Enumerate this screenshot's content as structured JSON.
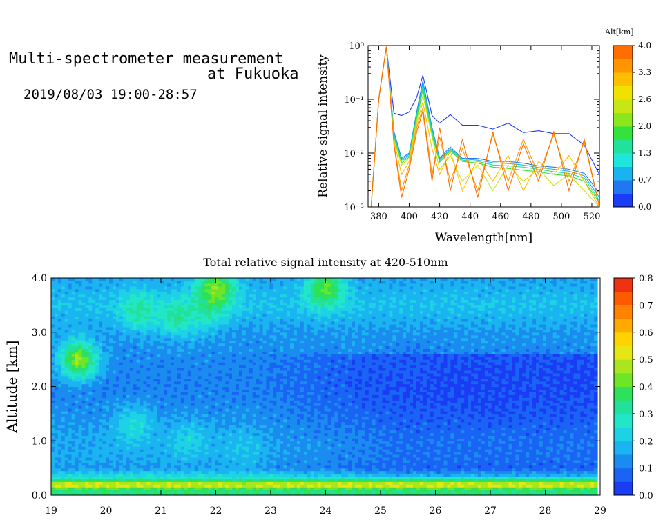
{
  "header": {
    "title_line1": "Multi-spectrometer measurement",
    "title_line2": "at Fukuoka",
    "datetime": "2019/08/03 19:00-28:57"
  },
  "chart_data": [
    {
      "type": "line",
      "title": "",
      "xlabel": "Wavelength[nm]",
      "ylabel": "Relative signal intensity",
      "yscale": "log",
      "xlim": [
        373,
        525
      ],
      "ylim": [
        0.001,
        1
      ],
      "x_ticks": [
        380,
        400,
        420,
        440,
        460,
        480,
        500,
        520
      ],
      "x_tick_labels": [
        "380",
        "400",
        "420",
        "440",
        "460",
        "480",
        "500",
        "520"
      ],
      "y_ticks": [
        0.001,
        0.01,
        0.1,
        1
      ],
      "y_tick_labels": [
        "10⁻³",
        "10⁻²",
        "10⁻¹",
        "10⁰"
      ],
      "colorbar": {
        "label": "Alt[km]",
        "tick_labels": [
          "0.0",
          "0.7",
          "1.3",
          "2.0",
          "2.6",
          "3.3",
          "4.0"
        ],
        "colors": [
          "#1a3cf5",
          "#1f78f0",
          "#19b4f0",
          "#1fe6dc",
          "#22e19a",
          "#35e13c",
          "#8ce61e",
          "#c8e614",
          "#f0e100",
          "#ffbe00",
          "#ff9600",
          "#ff6e00"
        ]
      },
      "x": [
        375,
        380,
        385,
        390,
        395,
        400,
        405,
        409,
        415,
        420,
        427,
        435,
        445,
        455,
        465,
        475,
        485,
        495,
        505,
        515,
        525
      ],
      "series": [
        {
          "color": "#1a3cf5",
          "values": [
            0.001,
            0.1,
            0.95,
            0.055,
            0.05,
            0.058,
            0.11,
            0.28,
            0.05,
            0.036,
            0.052,
            0.033,
            0.033,
            0.028,
            0.036,
            0.024,
            0.026,
            0.023,
            0.023,
            0.014,
            0.004
          ]
        },
        {
          "color": "#1f78f0",
          "values": [
            0.001,
            0.1,
            0.95,
            0.025,
            0.008,
            0.01,
            0.06,
            0.22,
            0.03,
            0.008,
            0.013,
            0.008,
            0.008,
            0.007,
            0.007,
            0.0065,
            0.0058,
            0.0055,
            0.005,
            0.0042,
            0.0018
          ]
        },
        {
          "color": "#19b4f0",
          "values": [
            0.001,
            0.1,
            0.95,
            0.023,
            0.0075,
            0.0095,
            0.055,
            0.2,
            0.028,
            0.0075,
            0.012,
            0.0078,
            0.0074,
            0.0066,
            0.0064,
            0.006,
            0.0054,
            0.005,
            0.0046,
            0.0038,
            0.0015
          ]
        },
        {
          "color": "#22e19a",
          "values": [
            0.001,
            0.1,
            0.95,
            0.021,
            0.007,
            0.009,
            0.05,
            0.17,
            0.025,
            0.0072,
            0.0115,
            0.0074,
            0.007,
            0.006,
            0.0058,
            0.0055,
            0.005,
            0.0045,
            0.0042,
            0.0034,
            0.0013
          ]
        },
        {
          "color": "#35e13c",
          "values": [
            0.001,
            0.1,
            0.95,
            0.02,
            0.0065,
            0.0085,
            0.045,
            0.15,
            0.022,
            0.0068,
            0.011,
            0.007,
            0.0065,
            0.0055,
            0.0052,
            0.0048,
            0.0045,
            0.004,
            0.0038,
            0.003,
            0.0012
          ]
        },
        {
          "color": "#c8e614",
          "values": [
            0.001,
            0.1,
            0.95,
            0.018,
            0.006,
            0.008,
            0.04,
            0.12,
            0.02,
            0.005,
            0.009,
            0.003,
            0.006,
            0.002,
            0.006,
            0.003,
            0.005,
            0.0025,
            0.004,
            0.002,
            0.001
          ]
        },
        {
          "color": "#ffbe00",
          "values": [
            0.001,
            0.1,
            0.95,
            0.017,
            0.004,
            0.007,
            0.035,
            0.09,
            0.012,
            0.004,
            0.011,
            0.002,
            0.008,
            0.003,
            0.009,
            0.002,
            0.007,
            0.004,
            0.009,
            0.003,
            0.001
          ]
        },
        {
          "color": "#ff9600",
          "values": [
            0.001,
            0.1,
            0.95,
            0.015,
            0.002,
            0.006,
            0.03,
            0.07,
            0.004,
            0.02,
            0.003,
            0.012,
            0.002,
            0.022,
            0.003,
            0.018,
            0.004,
            0.022,
            0.003,
            0.016,
            0.001
          ]
        },
        {
          "color": "#ff6e00",
          "values": [
            0.001,
            0.1,
            0.95,
            0.014,
            0.0015,
            0.005,
            0.025,
            0.06,
            0.003,
            0.03,
            0.002,
            0.018,
            0.0015,
            0.025,
            0.002,
            0.015,
            0.003,
            0.025,
            0.002,
            0.018,
            0.001
          ]
        }
      ]
    },
    {
      "type": "heatmap",
      "title": "Total relative signal intensity at 420-510nm",
      "xlabel": "",
      "ylabel": "Altitude [km]",
      "xlim": [
        19,
        29
      ],
      "ylim": [
        0,
        4
      ],
      "x_ticks": [
        19,
        20,
        21,
        22,
        23,
        24,
        25,
        26,
        27,
        28,
        29
      ],
      "x_tick_labels": [
        "19",
        "20",
        "21",
        "22",
        "23",
        "24",
        "25",
        "26",
        "27",
        "28",
        "29"
      ],
      "y_ticks": [
        0,
        1,
        2,
        3,
        4
      ],
      "y_tick_labels": [
        "0.0",
        "1.0",
        "2.0",
        "3.0",
        "4.0"
      ],
      "colorbar": {
        "range": [
          0,
          0.8
        ],
        "tick_labels": [
          "0.0",
          "0.1",
          "0.2",
          "0.3",
          "0.4",
          "0.5",
          "0.6",
          "0.7",
          "0.8"
        ],
        "colors": [
          "#1a3cf5",
          "#1a64f5",
          "#1a8cf0",
          "#1ab4f0",
          "#1ed2e6",
          "#22e6c8",
          "#22e19a",
          "#2de15a",
          "#6ee628",
          "#aae61e",
          "#e6e614",
          "#ffd200",
          "#ffaa00",
          "#ff8200",
          "#ff5a00",
          "#f03214"
        ]
      },
      "x_end": 28.95,
      "profile_rows": [
        {
          "alt": 0.1,
          "value": 0.35
        },
        {
          "alt": 0.2,
          "value": 0.55
        },
        {
          "alt": 0.3,
          "value": 0.3
        },
        {
          "alt": 0.5,
          "value": 0.14
        },
        {
          "alt": 0.7,
          "value": 0.16
        },
        {
          "alt": 1.0,
          "value": 0.16
        },
        {
          "alt": 1.5,
          "value": 0.13
        },
        {
          "alt": 2.0,
          "value": 0.11
        },
        {
          "alt": 2.5,
          "value": 0.12
        },
        {
          "alt": 3.0,
          "value": 0.14
        },
        {
          "alt": 3.5,
          "value": 0.2
        },
        {
          "alt": 4.0,
          "value": 0.15
        }
      ],
      "features": [
        {
          "x": 19.5,
          "alt": 2.5,
          "value": 0.45
        },
        {
          "x": 20.6,
          "alt": 3.4,
          "value": 0.32
        },
        {
          "x": 21.3,
          "alt": 3.3,
          "value": 0.33
        },
        {
          "x": 21.8,
          "alt": 3.4,
          "value": 0.3
        },
        {
          "x": 22.0,
          "alt": 3.8,
          "value": 0.45
        },
        {
          "x": 24.0,
          "alt": 3.8,
          "value": 0.42
        },
        {
          "x": 20.5,
          "alt": 1.3,
          "value": 0.25
        },
        {
          "x": 21.5,
          "alt": 1.0,
          "value": 0.23
        },
        {
          "x": 22.5,
          "alt": 0.85,
          "value": 0.2
        },
        {
          "x": 27.0,
          "alt": 1.8,
          "value": 0.04
        },
        {
          "x": 25.6,
          "alt": 2.3,
          "value": 0.06
        },
        {
          "x": 27.8,
          "alt": 2.2,
          "value": 0.05
        }
      ]
    }
  ]
}
